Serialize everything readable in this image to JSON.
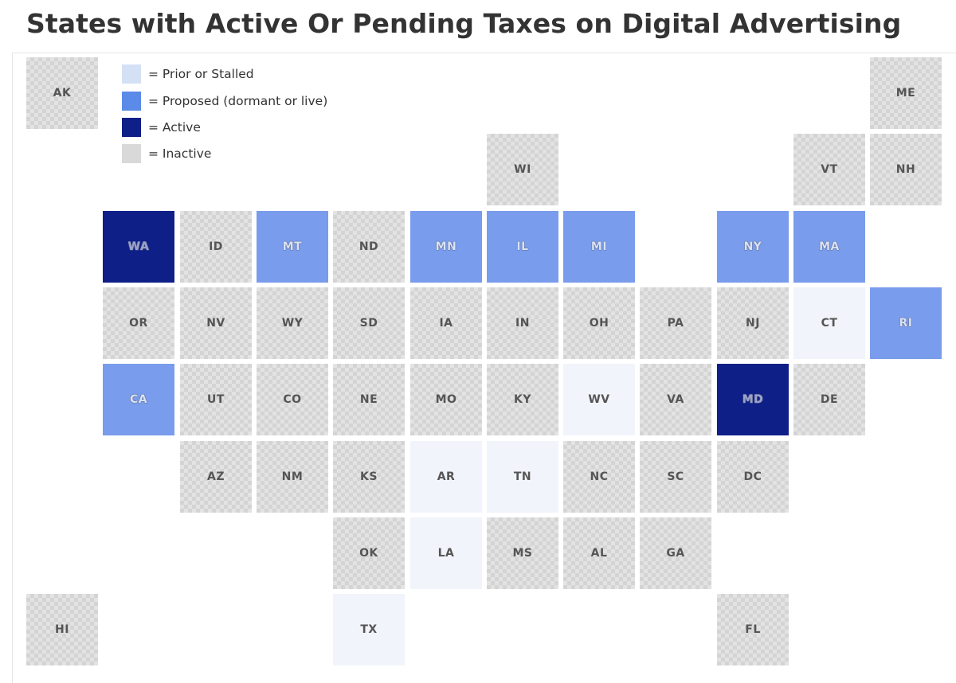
{
  "title": "States with Active Or Pending Taxes on Digital Advertising",
  "colors": {
    "prior": "#f2f4fb",
    "proposed": "#799cec",
    "active": "#0f1f88",
    "inactive": "#e3e3e3"
  },
  "legend": [
    {
      "key": "prior",
      "swatch_color": "#d4e1f5",
      "label": "= Prior or Stalled"
    },
    {
      "key": "proposed",
      "swatch_color": "#5b8ae8",
      "label": "= Proposed (dormant or live)"
    },
    {
      "key": "active",
      "swatch_color": "#0f1f88",
      "label": "= Active"
    },
    {
      "key": "inactive",
      "swatch_color": "#d9d9d9",
      "label": "= Inactive"
    }
  ],
  "grid": {
    "columns": 12,
    "rows": 8,
    "states": [
      {
        "abbr": "AK",
        "col": 0,
        "row": 0,
        "status": "inactive"
      },
      {
        "abbr": "ME",
        "col": 11,
        "row": 0,
        "status": "inactive"
      },
      {
        "abbr": "WI",
        "col": 6,
        "row": 1,
        "status": "inactive"
      },
      {
        "abbr": "VT",
        "col": 10,
        "row": 1,
        "status": "inactive"
      },
      {
        "abbr": "NH",
        "col": 11,
        "row": 1,
        "status": "inactive"
      },
      {
        "abbr": "WA",
        "col": 1,
        "row": 2,
        "status": "active"
      },
      {
        "abbr": "ID",
        "col": 2,
        "row": 2,
        "status": "inactive"
      },
      {
        "abbr": "MT",
        "col": 3,
        "row": 2,
        "status": "proposed"
      },
      {
        "abbr": "ND",
        "col": 4,
        "row": 2,
        "status": "inactive"
      },
      {
        "abbr": "MN",
        "col": 5,
        "row": 2,
        "status": "proposed"
      },
      {
        "abbr": "IL",
        "col": 6,
        "row": 2,
        "status": "proposed"
      },
      {
        "abbr": "MI",
        "col": 7,
        "row": 2,
        "status": "proposed"
      },
      {
        "abbr": "NY",
        "col": 9,
        "row": 2,
        "status": "proposed"
      },
      {
        "abbr": "MA",
        "col": 10,
        "row": 2,
        "status": "proposed"
      },
      {
        "abbr": "OR",
        "col": 1,
        "row": 3,
        "status": "inactive"
      },
      {
        "abbr": "NV",
        "col": 2,
        "row": 3,
        "status": "inactive"
      },
      {
        "abbr": "WY",
        "col": 3,
        "row": 3,
        "status": "inactive"
      },
      {
        "abbr": "SD",
        "col": 4,
        "row": 3,
        "status": "inactive"
      },
      {
        "abbr": "IA",
        "col": 5,
        "row": 3,
        "status": "inactive"
      },
      {
        "abbr": "IN",
        "col": 6,
        "row": 3,
        "status": "inactive"
      },
      {
        "abbr": "OH",
        "col": 7,
        "row": 3,
        "status": "inactive"
      },
      {
        "abbr": "PA",
        "col": 8,
        "row": 3,
        "status": "inactive"
      },
      {
        "abbr": "NJ",
        "col": 9,
        "row": 3,
        "status": "inactive"
      },
      {
        "abbr": "CT",
        "col": 10,
        "row": 3,
        "status": "prior"
      },
      {
        "abbr": "RI",
        "col": 11,
        "row": 3,
        "status": "proposed"
      },
      {
        "abbr": "CA",
        "col": 1,
        "row": 4,
        "status": "proposed"
      },
      {
        "abbr": "UT",
        "col": 2,
        "row": 4,
        "status": "inactive"
      },
      {
        "abbr": "CO",
        "col": 3,
        "row": 4,
        "status": "inactive"
      },
      {
        "abbr": "NE",
        "col": 4,
        "row": 4,
        "status": "inactive"
      },
      {
        "abbr": "MO",
        "col": 5,
        "row": 4,
        "status": "inactive"
      },
      {
        "abbr": "KY",
        "col": 6,
        "row": 4,
        "status": "inactive"
      },
      {
        "abbr": "WV",
        "col": 7,
        "row": 4,
        "status": "prior"
      },
      {
        "abbr": "VA",
        "col": 8,
        "row": 4,
        "status": "inactive"
      },
      {
        "abbr": "MD",
        "col": 9,
        "row": 4,
        "status": "active"
      },
      {
        "abbr": "DE",
        "col": 10,
        "row": 4,
        "status": "inactive"
      },
      {
        "abbr": "AZ",
        "col": 2,
        "row": 5,
        "status": "inactive"
      },
      {
        "abbr": "NM",
        "col": 3,
        "row": 5,
        "status": "inactive"
      },
      {
        "abbr": "KS",
        "col": 4,
        "row": 5,
        "status": "inactive"
      },
      {
        "abbr": "AR",
        "col": 5,
        "row": 5,
        "status": "prior"
      },
      {
        "abbr": "TN",
        "col": 6,
        "row": 5,
        "status": "prior"
      },
      {
        "abbr": "NC",
        "col": 7,
        "row": 5,
        "status": "inactive"
      },
      {
        "abbr": "SC",
        "col": 8,
        "row": 5,
        "status": "inactive"
      },
      {
        "abbr": "DC",
        "col": 9,
        "row": 5,
        "status": "inactive"
      },
      {
        "abbr": "OK",
        "col": 4,
        "row": 6,
        "status": "inactive"
      },
      {
        "abbr": "LA",
        "col": 5,
        "row": 6,
        "status": "prior"
      },
      {
        "abbr": "MS",
        "col": 6,
        "row": 6,
        "status": "inactive"
      },
      {
        "abbr": "AL",
        "col": 7,
        "row": 6,
        "status": "inactive"
      },
      {
        "abbr": "GA",
        "col": 8,
        "row": 6,
        "status": "inactive"
      },
      {
        "abbr": "HI",
        "col": 0,
        "row": 7,
        "status": "inactive"
      },
      {
        "abbr": "TX",
        "col": 4,
        "row": 7,
        "status": "prior"
      },
      {
        "abbr": "FL",
        "col": 9,
        "row": 7,
        "status": "inactive"
      }
    ]
  }
}
